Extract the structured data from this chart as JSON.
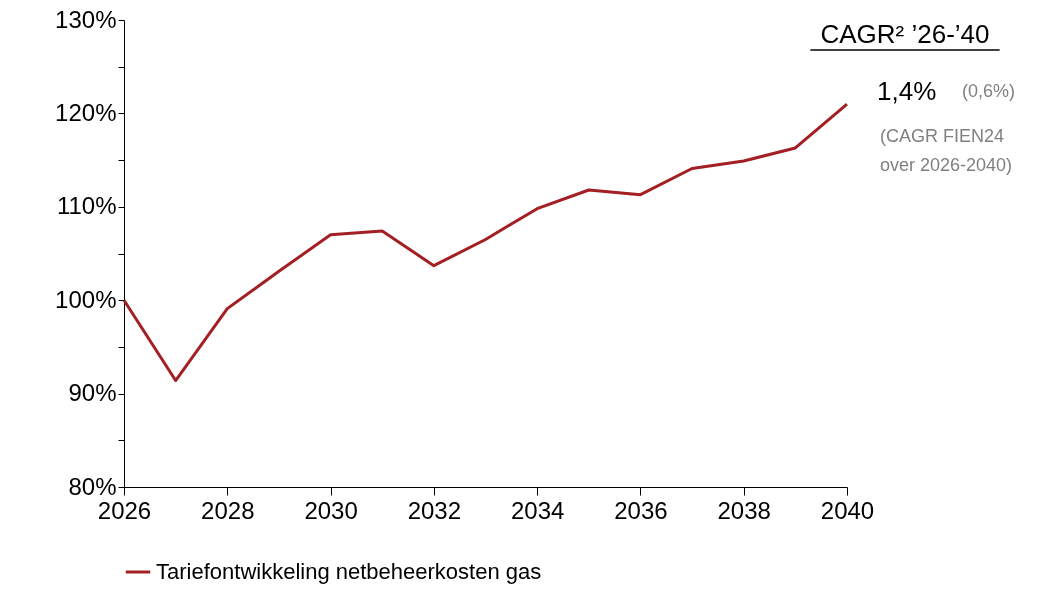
{
  "chart_data": {
    "type": "line",
    "x": [
      2026,
      2027,
      2028,
      2029,
      2030,
      2031,
      2032,
      2033,
      2034,
      2035,
      2036,
      2037,
      2038,
      2039,
      2040
    ],
    "series": [
      {
        "name": "Tariefontwikkeling netbeheerkosten gas",
        "color": "#a31f24",
        "values": [
          100,
          91.4,
          99.1,
          103.1,
          107.0,
          107.4,
          103.7,
          106.5,
          109.8,
          111.8,
          111.3,
          114.1,
          114.9,
          116.3,
          121.0
        ]
      }
    ],
    "xlim": [
      2026,
      2040
    ],
    "xticks": [
      2026,
      2028,
      2030,
      2032,
      2034,
      2036,
      2038,
      2040
    ],
    "ylim": [
      80,
      130
    ],
    "yticks": [
      {
        "value": 80,
        "label": "80%"
      },
      {
        "value": 85,
        "label": null
      },
      {
        "value": 90,
        "label": "90%"
      },
      {
        "value": 95,
        "label": null
      },
      {
        "value": 100,
        "label": "100%"
      },
      {
        "value": 105,
        "label": null
      },
      {
        "value": 110,
        "label": "110%"
      },
      {
        "value": 115,
        "label": null
      },
      {
        "value": 120,
        "label": "120%"
      },
      {
        "value": 125,
        "label": null
      },
      {
        "value": 130,
        "label": "130%"
      }
    ],
    "annotations": [
      "CAGR² ’26-’40",
      "1,4%",
      "(0,6%)",
      "(CAGR FIEN24\nover 2026-2040)"
    ],
    "grid": false,
    "legend": "bottom",
    "marker": "none",
    "line_style": "solid"
  }
}
